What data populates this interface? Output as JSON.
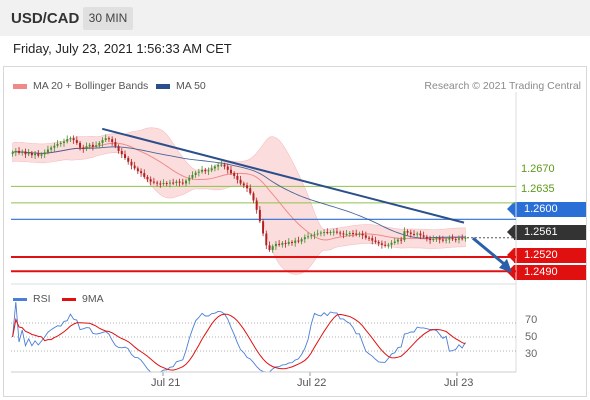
{
  "header": {
    "symbol": "USD/CAD",
    "timeframe": "30 MIN"
  },
  "datetime": "Friday, July 23, 2021 1:56:33 AM CET",
  "legend": {
    "bollinger": {
      "label": "MA 20 + Bollinger Bands",
      "color": "#f08a8a"
    },
    "ma50": {
      "label": "MA 50",
      "color": "#2b4f8c"
    },
    "rsi": {
      "label": "RSI",
      "color": "#4a7fd6"
    },
    "ma9": {
      "label": "9MA",
      "color": "#e01010"
    }
  },
  "credit": "Research © 2021 Trading Central",
  "chart_data": {
    "type": "candlestick",
    "ylim": [
      1.2465,
      1.287
    ],
    "resistance_levels": [
      {
        "value": 1.267,
        "label": "1.2670",
        "color": "#8fc24a"
      },
      {
        "value": 1.2635,
        "label": "1.2635",
        "color": "#8fc24a"
      }
    ],
    "pivot_level": {
      "value": 1.26,
      "label": "1.2600",
      "color": "#2a6fd6"
    },
    "support_levels": [
      {
        "value": 1.252,
        "label": "1.2520",
        "color": "#e01010"
      },
      {
        "value": 1.249,
        "label": "1.2490",
        "color": "#e01010"
      }
    ],
    "last_price": {
      "value": 1.2561,
      "label": "1.2561"
    },
    "trendline": {
      "start": {
        "index": 0.2,
        "value": 1.2792
      },
      "end": {
        "index": 1.0,
        "value": 1.2593
      }
    },
    "arrow": {
      "from_value": 1.256,
      "to_value": 1.2495
    },
    "x_ticks": [
      "Jul 21",
      "Jul 22",
      "Jul 23"
    ],
    "closes": [
      1.2742,
      1.2745,
      1.2741,
      1.2744,
      1.2738,
      1.2741,
      1.2736,
      1.2739,
      1.2735,
      1.2738,
      1.2742,
      1.2748,
      1.2752,
      1.2756,
      1.276,
      1.2762,
      1.2765,
      1.277,
      1.2772,
      1.2768,
      1.2762,
      1.2752,
      1.2749,
      1.2755,
      1.2758,
      1.2754,
      1.2757,
      1.2762,
      1.2768,
      1.2772,
      1.277,
      1.2764,
      1.2755,
      1.2745,
      1.2738,
      1.273,
      1.2722,
      1.2714,
      1.2708,
      1.2702,
      1.2698,
      1.269,
      1.2685,
      1.268,
      1.2678,
      1.2676,
      1.2675,
      1.2677,
      1.2676,
      1.2678,
      1.2677,
      1.268,
      1.2678,
      1.2676,
      1.2682,
      1.2688,
      1.2694,
      1.2699,
      1.2701,
      1.2705,
      1.2702,
      1.2704,
      1.2708,
      1.2712,
      1.2715,
      1.2716,
      1.2712,
      1.2705,
      1.2698,
      1.2692,
      1.2684,
      1.2676,
      1.2672,
      1.2666,
      1.2655,
      1.264,
      1.262,
      1.2596,
      1.257,
      1.2545,
      1.2535,
      1.2543,
      1.2548,
      1.2546,
      1.255,
      1.2548,
      1.2552,
      1.255,
      1.2555,
      1.2553,
      1.2558,
      1.2562,
      1.2564,
      1.2566,
      1.2568,
      1.257,
      1.2572,
      1.2573,
      1.2572,
      1.2573,
      1.2574,
      1.2572,
      1.257,
      1.2568,
      1.2569,
      1.2571,
      1.257,
      1.2568,
      1.257,
      1.2566,
      1.2561,
      1.256,
      1.2555,
      1.2552,
      1.2549,
      1.2546,
      1.2544,
      1.2546,
      1.255,
      1.2553,
      1.2557,
      1.2556,
      1.2575,
      1.2572,
      1.2569,
      1.2568,
      1.257,
      1.2566,
      1.2563,
      1.2559,
      1.2556,
      1.2558,
      1.256,
      1.2557,
      1.2555,
      1.2557,
      1.256,
      1.2558,
      1.2557,
      1.256,
      1.2559,
      1.2561
    ],
    "rsi": {
      "ylim": [
        0,
        100
      ],
      "levels": [
        70,
        50,
        30
      ]
    }
  }
}
